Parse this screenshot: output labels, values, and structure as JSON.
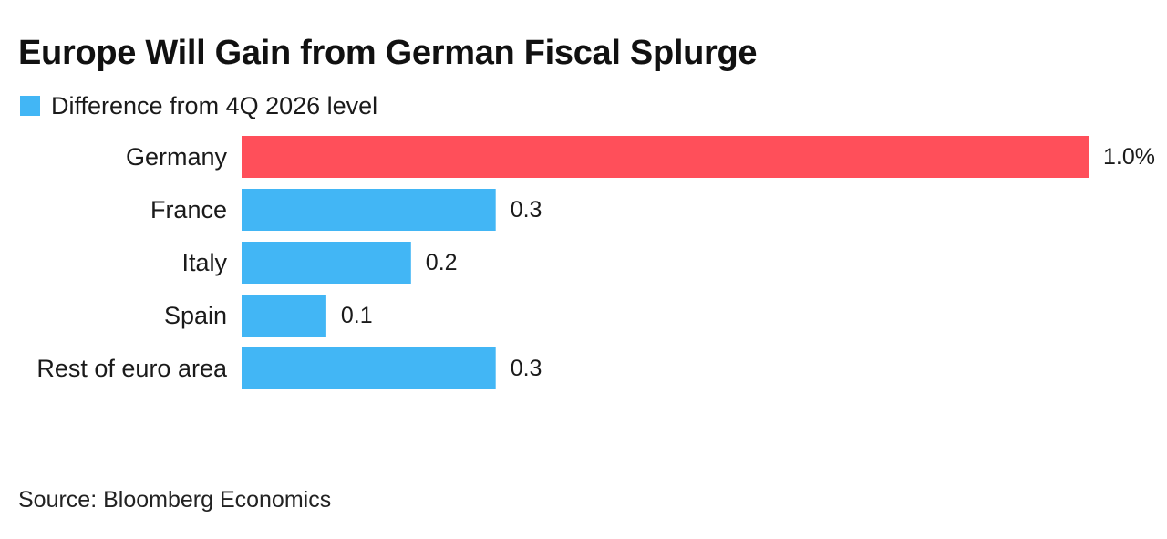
{
  "chart_data": {
    "type": "bar",
    "orientation": "horizontal",
    "title": "Europe Will Gain from German Fiscal Splurge",
    "legend": [
      {
        "name": "Difference from 4Q 2026 level",
        "color": "#42b6f5"
      }
    ],
    "categories": [
      "Germany",
      "France",
      "Italy",
      "Spain",
      "Rest of euro area"
    ],
    "values": [
      1.0,
      0.3,
      0.2,
      0.1,
      0.3
    ],
    "value_labels": [
      "1.0%",
      "0.3",
      "0.2",
      "0.1",
      "0.3"
    ],
    "colors": [
      "#ff4f5a",
      "#42b6f5",
      "#42b6f5",
      "#42b6f5",
      "#42b6f5"
    ],
    "xlim": [
      0,
      1.0
    ],
    "grid": false,
    "source": "Source: Bloomberg Economics"
  }
}
